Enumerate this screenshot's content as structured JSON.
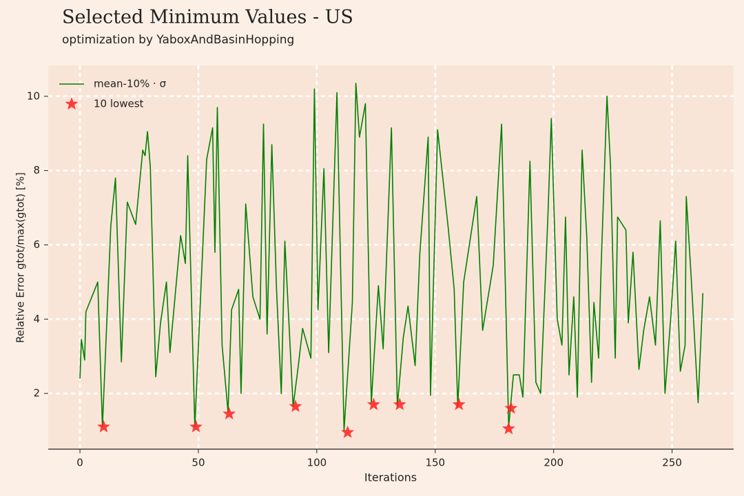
{
  "chart_data": {
    "type": "line",
    "title": "Selected Minimum Values - US",
    "subtitle": "optimization by YaboxAndBasinHopping",
    "x_label": "Iterations",
    "y_label": "Relative Error gtot/max(gtot) [%]",
    "xlim": [
      -13.4,
      276
    ],
    "ylim": [
      0.5,
      10.83
    ],
    "xticks": [
      0,
      50,
      100,
      150,
      200,
      250
    ],
    "yticks": [
      2,
      4,
      6,
      8,
      10
    ],
    "grid": true,
    "legend": "upper left",
    "x": [
      0,
      0.6,
      2,
      2.5,
      7.5,
      9.5,
      13,
      15,
      17.5,
      20,
      23.5,
      26.5,
      27.5,
      28.5,
      29.7,
      32,
      34,
      36.5,
      38,
      42.5,
      44.5,
      45.5,
      48.5,
      53.5,
      56,
      57,
      58,
      60,
      62.5,
      64,
      67,
      68,
      70,
      73,
      76,
      77.5,
      79,
      81,
      83,
      85,
      86.5,
      90,
      92,
      94,
      97.5,
      99,
      100.5,
      103,
      105,
      108.5,
      111.5,
      115,
      116.5,
      118,
      120.5,
      123,
      126,
      128,
      131.5,
      134,
      136.5,
      138.5,
      141.5,
      143.5,
      147,
      148,
      151,
      155.5,
      158,
      159.5,
      162,
      167.5,
      170,
      174.5,
      178,
      181,
      183,
      185.5,
      187,
      190,
      192.5,
      194.5,
      197.5,
      199,
      201.5,
      203.5,
      205,
      206.5,
      208.5,
      210,
      212,
      214,
      216,
      217,
      219,
      220,
      222.5,
      224,
      226,
      227,
      230.5,
      231.5,
      233.5,
      236,
      238,
      240.5,
      243,
      245,
      247,
      249.5,
      251.5,
      253.5,
      255.5,
      256,
      258,
      261,
      263
    ],
    "series": [
      {
        "name": "mean-10% · σ",
        "color": "#008000",
        "values": [
          2.4,
          3.45,
          2.9,
          4.2,
          5.0,
          1.1,
          6.5,
          7.8,
          2.85,
          7.15,
          6.55,
          8.55,
          8.4,
          9.05,
          8.1,
          2.45,
          3.9,
          5.0,
          3.1,
          6.25,
          5.5,
          8.4,
          1.1,
          8.3,
          9.15,
          5.8,
          9.7,
          3.3,
          1.5,
          4.25,
          4.8,
          2.0,
          7.1,
          4.6,
          4.0,
          9.25,
          3.6,
          8.7,
          4.8,
          2.0,
          6.1,
          1.65,
          2.65,
          3.75,
          2.95,
          10.2,
          4.25,
          8.05,
          3.1,
          10.1,
          1.0,
          4.45,
          10.35,
          8.9,
          9.8,
          1.75,
          4.9,
          3.2,
          9.15,
          1.65,
          3.5,
          4.35,
          2.75,
          5.75,
          8.9,
          1.95,
          9.1,
          6.45,
          4.8,
          1.65,
          5.0,
          7.3,
          3.7,
          5.45,
          9.25,
          1.1,
          2.5,
          2.5,
          1.9,
          8.25,
          2.3,
          2.0,
          6.65,
          9.4,
          4.0,
          3.3,
          6.75,
          2.5,
          4.6,
          1.9,
          8.55,
          6.2,
          2.3,
          4.45,
          2.95,
          5.35,
          10.0,
          8.15,
          2.95,
          6.75,
          6.4,
          3.9,
          5.8,
          2.65,
          3.7,
          4.6,
          3.3,
          6.65,
          2.0,
          4.1,
          6.1,
          2.6,
          3.3,
          7.3,
          5.2,
          1.75,
          4.7
        ]
      },
      {
        "name": "10 lowest",
        "color": "#ff2020",
        "type": "scatter",
        "x": [
          10,
          49,
          63,
          91,
          113,
          124,
          135,
          160,
          181,
          182
        ],
        "values": [
          1.1,
          1.1,
          1.45,
          1.65,
          0.95,
          1.7,
          1.7,
          1.7,
          1.05,
          1.6
        ]
      }
    ]
  }
}
